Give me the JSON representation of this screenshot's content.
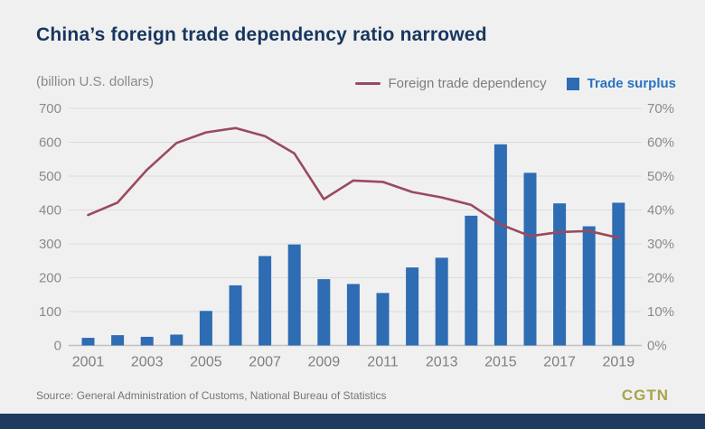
{
  "page": {
    "title": "China’s foreign trade dependency ratio narrowed",
    "units_label": "(billion U.S. dollars)",
    "source": "Source: General Administration of Customs, National Bureau of Statistics",
    "logo": "CGTN"
  },
  "legend": {
    "line_label": "Foreign trade dependency",
    "bar_label": "Trade surplus"
  },
  "colors": {
    "background": "#f0f0f0",
    "title": "#17365f",
    "line": "#9a4a5e",
    "bar": "#2e6cb3",
    "axis_text": "#8a8a8a",
    "year_text": "#7f7f7f",
    "grid": "#dcdcdc",
    "baseline": "#c2c2c2",
    "source_text": "#757575",
    "logo": "#a8a44a",
    "bottom_bar": "#1e3a5f"
  },
  "chart_data": {
    "type": "bar",
    "subtype": "bar+line dual-axis combo",
    "title": "China’s foreign trade dependency ratio narrowed",
    "categories": [
      2001,
      2002,
      2003,
      2004,
      2005,
      2006,
      2007,
      2008,
      2009,
      2010,
      2011,
      2012,
      2013,
      2014,
      2015,
      2016,
      2017,
      2018,
      2019
    ],
    "x_tick_labels": [
      "2001",
      "2003",
      "2005",
      "2007",
      "2009",
      "2011",
      "2013",
      "2015",
      "2017",
      "2019"
    ],
    "series": [
      {
        "name": "Trade surplus",
        "type": "bar",
        "axis": "left",
        "unit": "billion U.S. dollars",
        "values": [
          22.5,
          30.4,
          25.5,
          32.1,
          102.0,
          177.5,
          264.0,
          298.1,
          195.7,
          181.5,
          154.9,
          230.3,
          259.0,
          383.1,
          593.9,
          509.7,
          419.5,
          351.8,
          421.5
        ]
      },
      {
        "name": "Foreign trade dependency",
        "type": "line",
        "axis": "right",
        "unit": "%",
        "values": [
          38.5,
          42.2,
          51.9,
          59.8,
          62.9,
          64.2,
          61.8,
          56.7,
          43.2,
          48.7,
          48.3,
          45.3,
          43.7,
          41.5,
          35.7,
          32.3,
          33.5,
          33.8,
          31.8
        ]
      }
    ],
    "left_axis": {
      "label": "(billion U.S. dollars)",
      "min": 0,
      "max": 700,
      "tick_step": 100,
      "tick_labels": [
        "0",
        "100",
        "200",
        "300",
        "400",
        "500",
        "600",
        "700"
      ]
    },
    "right_axis": {
      "min": 0,
      "max": 70,
      "tick_step": 10,
      "tick_labels": [
        "0%",
        "10%",
        "20%",
        "30%",
        "40%",
        "50%",
        "60%",
        "70%"
      ]
    },
    "grid": true,
    "legend_position": "top-right"
  }
}
